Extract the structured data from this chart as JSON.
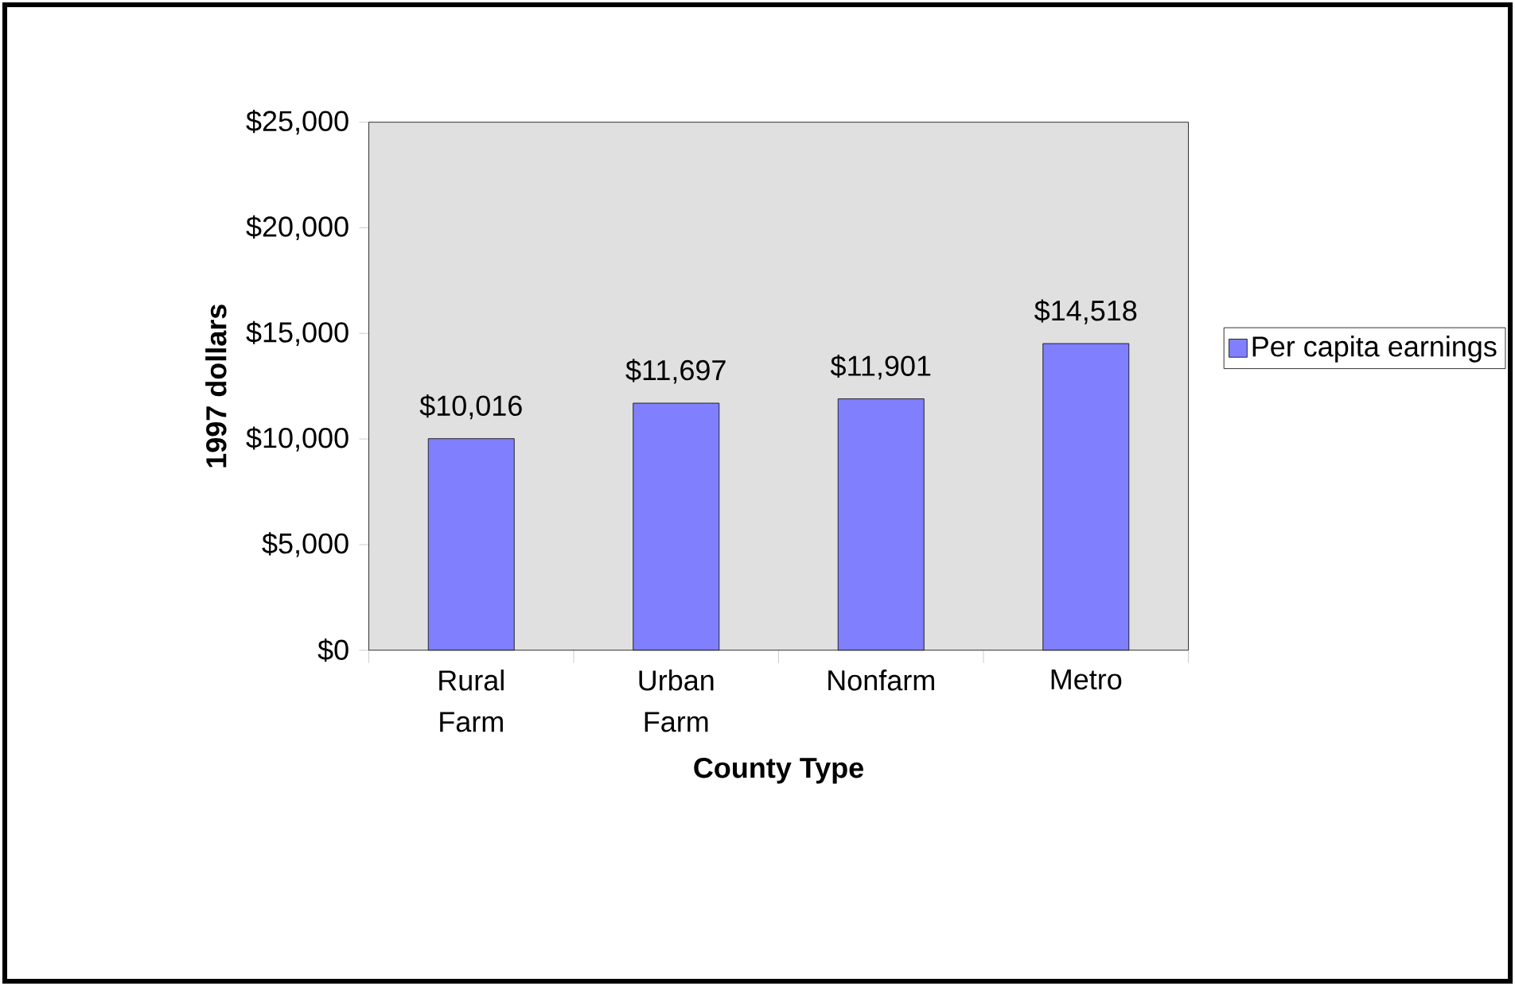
{
  "chart_data": {
    "type": "bar",
    "categories": [
      "Rural Farm",
      "Urban Farm",
      "Nonfarm",
      "Metro"
    ],
    "series": [
      {
        "name": "Per capita earnings",
        "color": "#8080ff",
        "values": [
          10016,
          11697,
          11901,
          14518
        ],
        "value_labels": [
          "$10,016",
          "$11,697",
          "$11,901",
          "$14,518"
        ]
      }
    ],
    "xlabel": "County Type",
    "ylabel": "1997 dollars",
    "ylim": [
      0,
      25000
    ],
    "yticks": [
      {
        "value": 0,
        "label": "$0"
      },
      {
        "value": 5000,
        "label": "$5,000"
      },
      {
        "value": 10000,
        "label": "$10,000"
      },
      {
        "value": 15000,
        "label": "$15,000"
      },
      {
        "value": 20000,
        "label": "$20,000"
      },
      {
        "value": 25000,
        "label": "$25,000"
      }
    ],
    "grid": false,
    "legend": "right"
  }
}
